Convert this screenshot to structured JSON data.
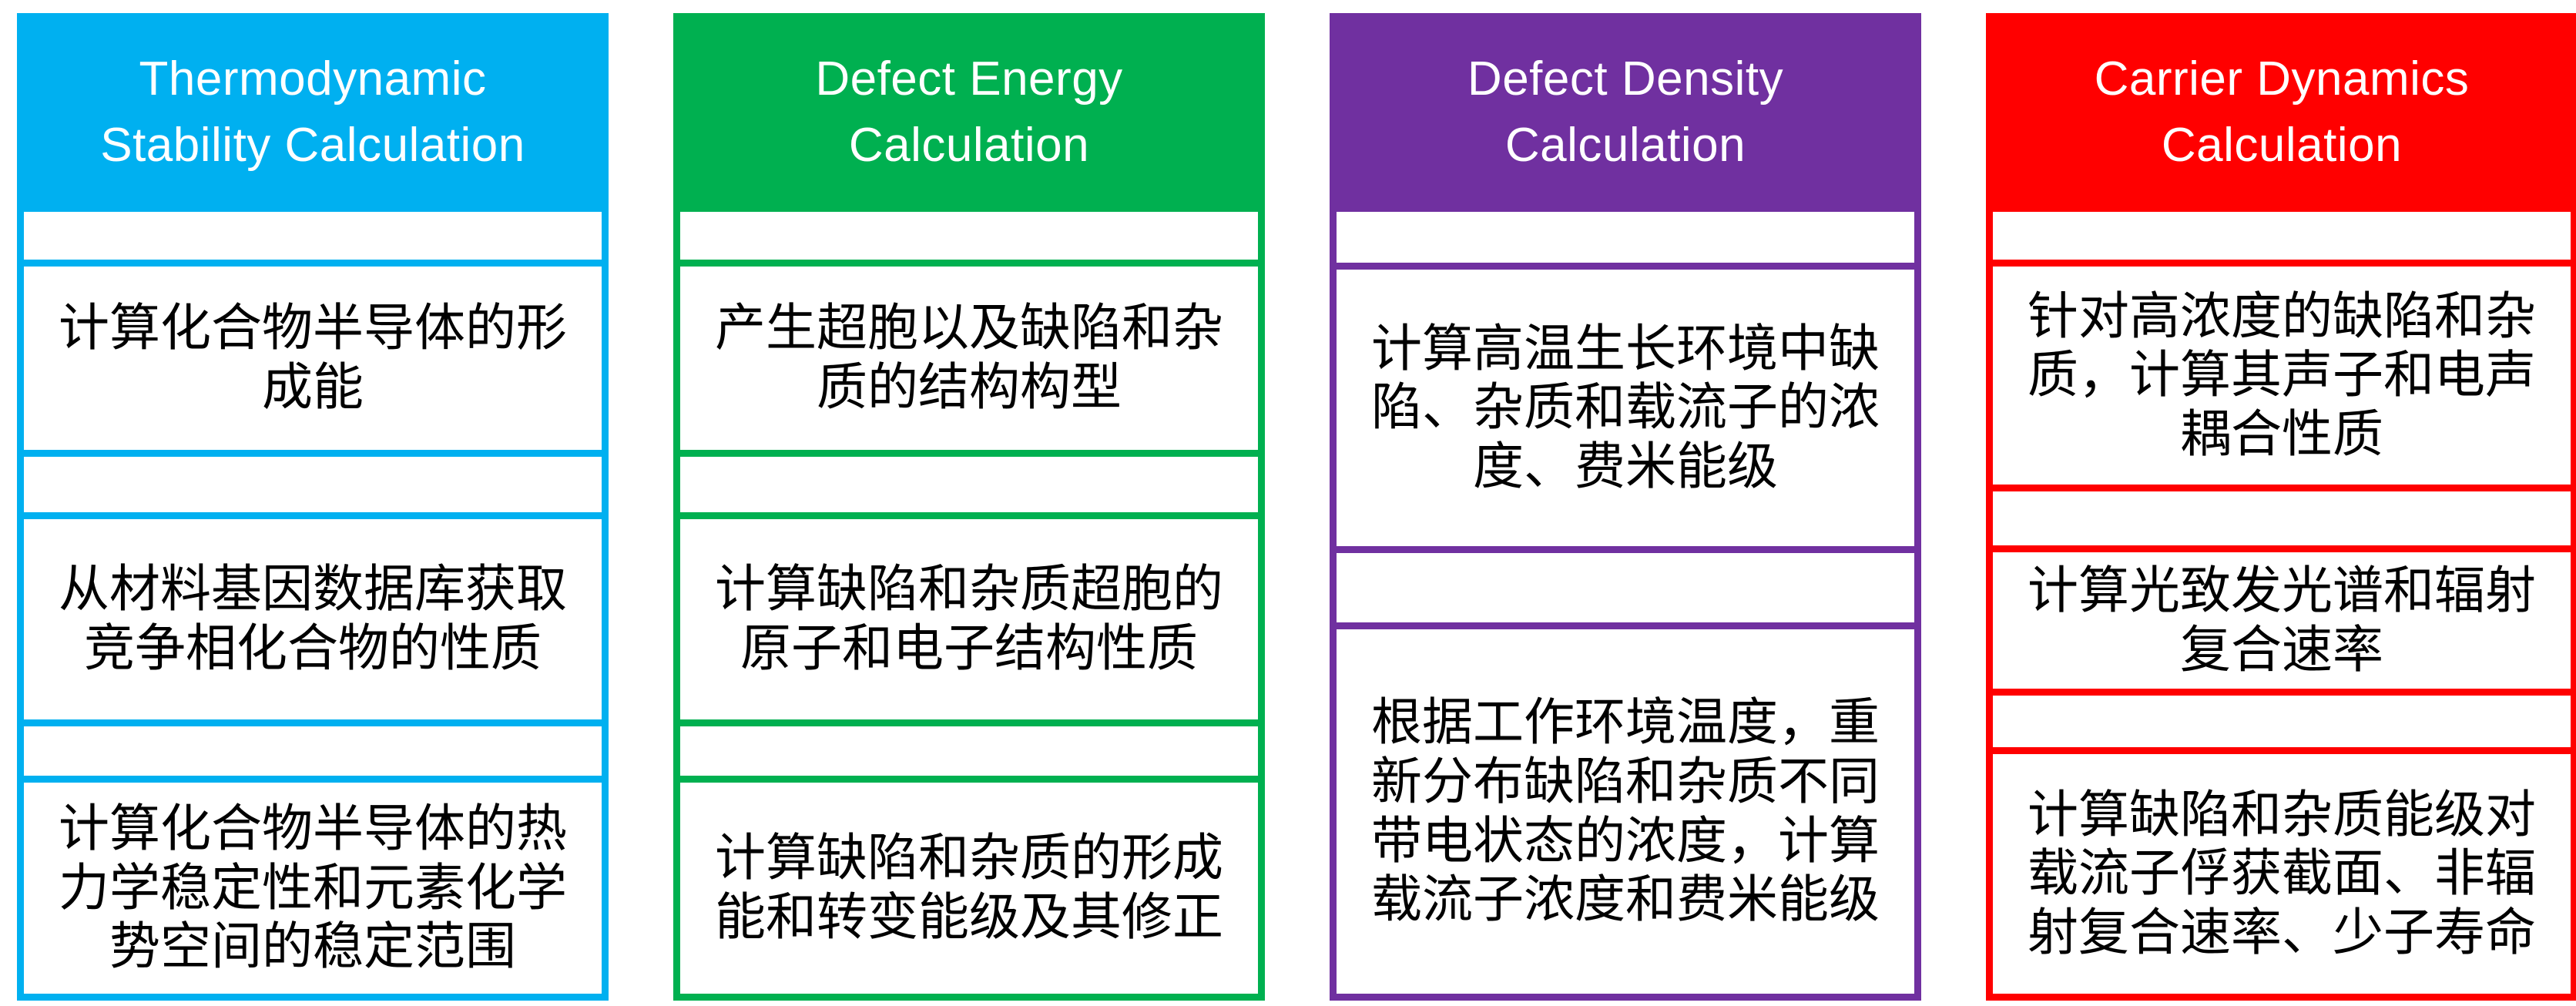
{
  "diagram": {
    "description_colors": {
      "column1_accent": "#00B0F0",
      "column2_accent": "#00B050",
      "column3_accent": "#7030A0",
      "column4_accent": "#FF0000",
      "step_text_color": "#000000",
      "header_text_color": "#FFFFFF",
      "background": "#FFFFFF"
    }
  },
  "columns": [
    {
      "title": "Thermodynamic\nStability Calculation",
      "accent": "#00B0F0",
      "steps": [
        "计算化合物半导体的形成能",
        "从材料基因数据库获取竞争相化合物的性质",
        "计算化合物半导体的热力学稳定性和元素化学势空间的稳定范围"
      ]
    },
    {
      "title": "Defect Energy\nCalculation",
      "accent": "#00B050",
      "steps": [
        "产生超胞以及缺陷和杂质的结构构型",
        "计算缺陷和杂质超胞的原子和电子结构性质",
        "计算缺陷和杂质的形成能和转变能级及其修正"
      ]
    },
    {
      "title": "Defect Density\nCalculation",
      "accent": "#7030A0",
      "steps": [
        "计算高温生长环境中缺陷、杂质和载流子的浓度、费米能级",
        "根据工作环境温度，重新分布缺陷和杂质不同带电状态的浓度，计算载流子浓度和费米能级"
      ]
    },
    {
      "title": "Carrier Dynamics\nCalculation",
      "accent": "#FF0000",
      "steps": [
        "针对高浓度的缺陷和杂质，计算其声子和电声耦合性质",
        "计算光致发光谱和辐射复合速率",
        "计算缺陷和杂质能级对载流子俘获截面、非辐射复合速率、少子寿命"
      ]
    }
  ]
}
